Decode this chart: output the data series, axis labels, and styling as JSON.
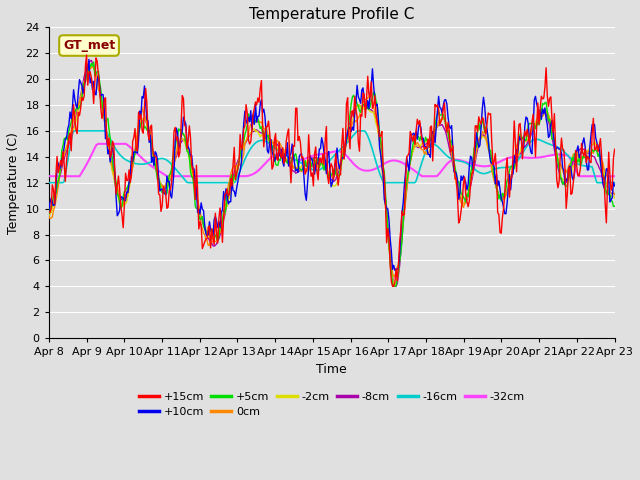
{
  "title": "Temperature Profile C",
  "xlabel": "Time",
  "ylabel": "Temperature (C)",
  "ylim": [
    0,
    24
  ],
  "bg_color": "#e0e0e0",
  "fig_bg": "#e0e0e0",
  "annotation_label": "GT_met",
  "annotation_bg": "#ffffcc",
  "annotation_border": "#aaaa00",
  "x_tick_labels": [
    "Apr 8",
    "Apr 9",
    "Apr 10",
    "Apr 11",
    "Apr 12",
    "Apr 13",
    "Apr 14",
    "Apr 15",
    "Apr 16",
    "Apr 17",
    "Apr 18",
    "Apr 19",
    "Apr 20",
    "Apr 21",
    "Apr 22",
    "Apr 23"
  ],
  "series_labels": [
    "+15cm",
    "+10cm",
    "+5cm",
    "0cm",
    "-2cm",
    "-8cm",
    "-16cm",
    "-32cm"
  ],
  "series_colors": [
    "#ff0000",
    "#0000ee",
    "#00dd00",
    "#ff8800",
    "#dddd00",
    "#aa00aa",
    "#00cccc",
    "#ff44ff"
  ],
  "series_linewidths": [
    1.0,
    1.0,
    1.0,
    1.0,
    1.0,
    1.0,
    1.2,
    1.5
  ],
  "n_points": 480,
  "n_days": 15,
  "grid_color": "#ffffff"
}
